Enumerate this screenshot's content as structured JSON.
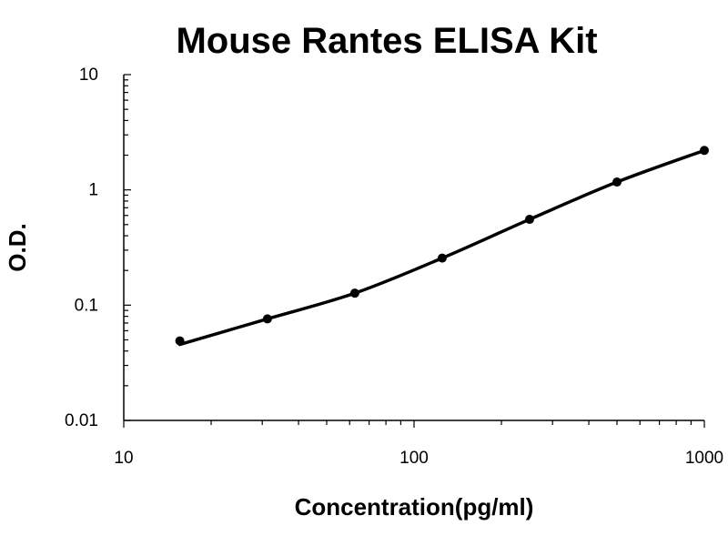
{
  "chart_data": {
    "type": "scatter",
    "title": "Mouse Rantes ELISA Kit",
    "xlabel": "Concentration(pg/ml)",
    "ylabel": "O.D.",
    "xscale": "log",
    "yscale": "log",
    "xlim": [
      10,
      1000
    ],
    "ylim": [
      0.01,
      10
    ],
    "x_ticks": [
      "10",
      "100",
      "1000"
    ],
    "y_ticks": [
      "0.01",
      "0.1",
      "1",
      "10"
    ],
    "grid": false,
    "legend": "none",
    "series": [
      {
        "x": [
          15.6,
          31.25,
          62.5,
          125,
          250,
          500,
          1000
        ],
        "y": [
          0.049,
          0.076,
          0.127,
          0.256,
          0.555,
          1.17,
          2.2
        ],
        "fit_line": true
      }
    ]
  }
}
